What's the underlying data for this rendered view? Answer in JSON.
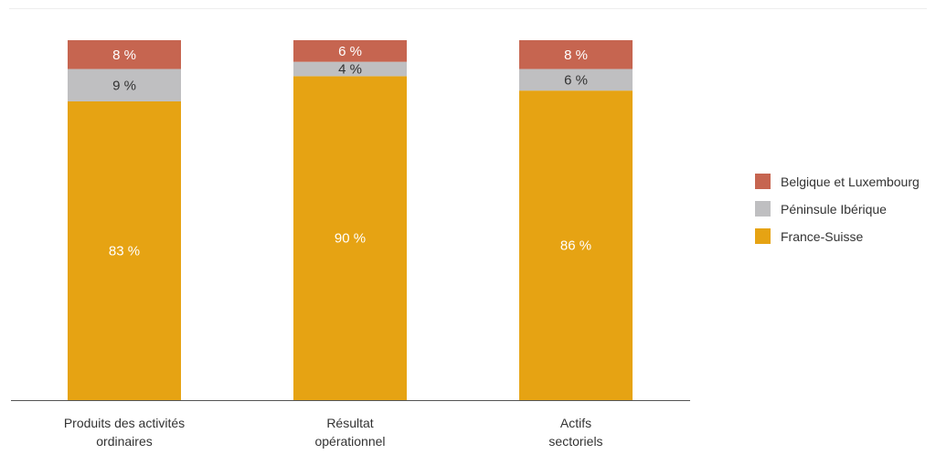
{
  "chart_data": {
    "type": "bar",
    "stacked": true,
    "unit": "%",
    "categories": [
      [
        "Produits des activités",
        "ordinaires"
      ],
      [
        "Résultat",
        "opérationnel"
      ],
      [
        "Actifs",
        "sectoriels"
      ]
    ],
    "series": [
      {
        "name": "France-Suisse",
        "color": "#E6A313",
        "values": [
          83,
          90,
          86
        ]
      },
      {
        "name": "Péninsule Ibérique",
        "color": "#BFBFC1",
        "values": [
          9,
          4,
          6
        ]
      },
      {
        "name": "Belgique et Luxembourg",
        "color": "#C66550",
        "values": [
          8,
          6,
          8
        ]
      }
    ],
    "label_colors": {
      "France-Suisse": "#ffffff",
      "Péninsule Ibérique": "#333333",
      "Belgique et Luxembourg": "#ffffff"
    },
    "legend_order": [
      "Belgique et Luxembourg",
      "Péninsule Ibérique",
      "France-Suisse"
    ],
    "legend_position": "right",
    "ylim": [
      0,
      100
    ],
    "grid": false,
    "title": "",
    "xlabel": "",
    "ylabel": ""
  }
}
